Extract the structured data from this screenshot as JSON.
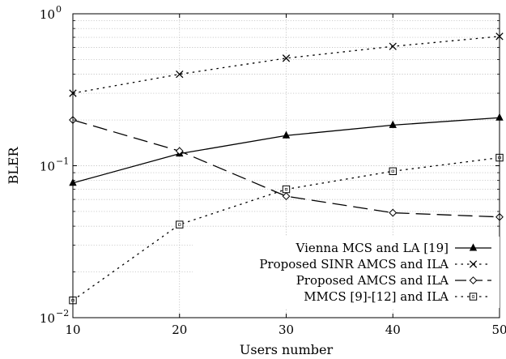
{
  "chart_data": {
    "type": "line",
    "xlabel": "Users number",
    "ylabel": "BLER",
    "x": [
      10,
      20,
      30,
      40,
      50
    ],
    "xlim": [
      10,
      50
    ],
    "ylim": [
      0.01,
      1
    ],
    "yscale": "log",
    "grid": true,
    "legend_position": "bottom-right",
    "x_ticks": [
      "10",
      "20",
      "30",
      "40",
      "50"
    ],
    "y_ticks": [
      {
        "value": 0.01,
        "base": "10",
        "exp": "−2"
      },
      {
        "value": 0.1,
        "base": "10",
        "exp": "−1"
      },
      {
        "value": 1,
        "base": "10",
        "exp": "0"
      }
    ],
    "series": [
      {
        "name": "Vienna MCS and LA [19]",
        "values": [
          0.077,
          0.12,
          0.158,
          0.185,
          0.207
        ],
        "line": "solid",
        "marker": "triangle"
      },
      {
        "name": "Proposed SINR AMCS and ILA",
        "values": [
          0.3,
          0.4,
          0.51,
          0.61,
          0.71
        ],
        "line": "dotted",
        "marker": "cross"
      },
      {
        "name": "Proposed AMCS and ILA",
        "values": [
          0.2,
          0.125,
          0.063,
          0.049,
          0.046
        ],
        "line": "dashed",
        "marker": "diamond"
      },
      {
        "name": "MMCS [9]-[12] and ILA",
        "values": [
          0.013,
          0.041,
          0.07,
          0.092,
          0.113
        ],
        "line": "dotted",
        "marker": "square"
      }
    ]
  }
}
